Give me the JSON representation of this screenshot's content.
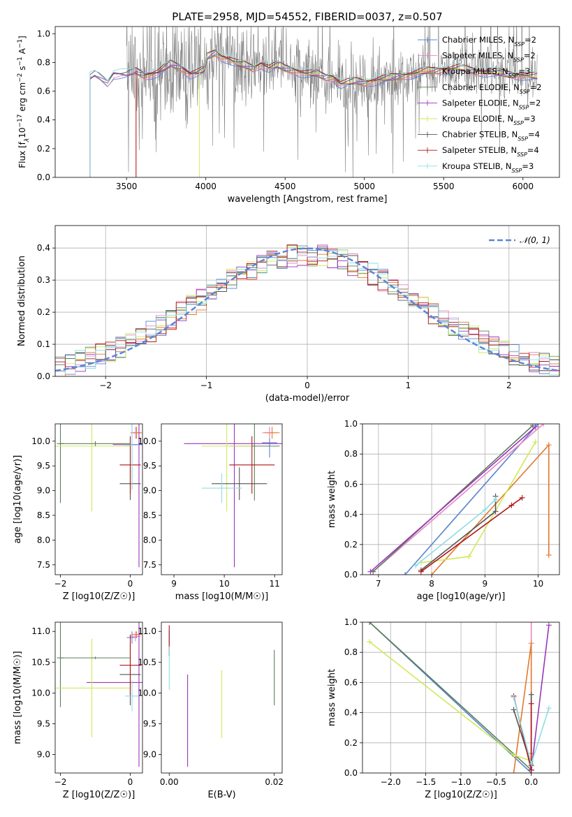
{
  "figure": {
    "title": "PLATE=2958, MJD=54552, FIBERID=0037, z=0.507"
  },
  "models": [
    {
      "name": "Chabrier MILES",
      "nssp": "2",
      "color": "#5a84d0"
    },
    {
      "name": "Salpeter MILES",
      "nssp": "2",
      "color": "#e986c4"
    },
    {
      "name": "Kroupa MILES",
      "nssp": "3",
      "color": "#e2792e"
    },
    {
      "name": "Chabrier ELODIE",
      "nssp": "2",
      "color": "#5b7f5c"
    },
    {
      "name": "Salpeter ELODIE",
      "nssp": "2",
      "color": "#9a36b8"
    },
    {
      "name": "Kroupa ELODIE",
      "nssp": "3",
      "color": "#cfe95a"
    },
    {
      "name": "Chabrier STELIB",
      "nssp": "4",
      "color": "#555555"
    },
    {
      "name": "Salpeter STELIB",
      "nssp": "4",
      "color": "#b01515"
    },
    {
      "name": "Kroupa STELIB",
      "nssp": "3",
      "color": "#8fdde3"
    }
  ],
  "chart_data": [
    {
      "id": "spectrum",
      "type": "line",
      "title": "PLATE=2958, MJD=54552, FIBERID=0037, z=0.507",
      "xlabel": "wavelength [Angstrom, rest frame]",
      "ylabel": "Flux [f_λ 10^-17 erg cm^-2 s^-1 A^-1]",
      "xlim": [
        3050,
        6230
      ],
      "ylim": [
        0,
        1.05
      ],
      "xticks": [
        3500,
        4000,
        4500,
        5000,
        5500,
        6000
      ],
      "yticks": [
        0.0,
        0.2,
        0.4,
        0.6,
        0.8,
        1.0
      ],
      "data_range": [
        3270,
        6090
      ],
      "continuum": [
        [
          3270,
          0.7
        ],
        [
          3300,
          0.72
        ],
        [
          3330,
          0.7
        ],
        [
          3380,
          0.66
        ],
        [
          3420,
          0.72
        ],
        [
          3500,
          0.72
        ],
        [
          3560,
          0.74
        ],
        [
          3620,
          0.71
        ],
        [
          3700,
          0.73
        ],
        [
          3780,
          0.79
        ],
        [
          3850,
          0.76
        ],
        [
          3900,
          0.72
        ],
        [
          3950,
          0.73
        ],
        [
          3990,
          0.75
        ],
        [
          4010,
          0.84
        ],
        [
          4060,
          0.87
        ],
        [
          4100,
          0.84
        ],
        [
          4150,
          0.82
        ],
        [
          4200,
          0.79
        ],
        [
          4250,
          0.78
        ],
        [
          4300,
          0.76
        ],
        [
          4350,
          0.79
        ],
        [
          4400,
          0.76
        ],
        [
          4450,
          0.78
        ],
        [
          4500,
          0.76
        ],
        [
          4550,
          0.75
        ],
        [
          4600,
          0.73
        ],
        [
          4650,
          0.72
        ],
        [
          4700,
          0.72
        ],
        [
          4750,
          0.7
        ],
        [
          4800,
          0.7
        ],
        [
          4850,
          0.65
        ],
        [
          4900,
          0.66
        ],
        [
          4950,
          0.67
        ],
        [
          5000,
          0.66
        ],
        [
          5100,
          0.68
        ],
        [
          5200,
          0.7
        ],
        [
          5300,
          0.72
        ],
        [
          5400,
          0.74
        ],
        [
          5500,
          0.75
        ],
        [
          5600,
          0.76
        ],
        [
          5700,
          0.74
        ],
        [
          5800,
          0.73
        ],
        [
          5900,
          0.72
        ],
        [
          6000,
          0.71
        ],
        [
          6090,
          0.7
        ]
      ]
    },
    {
      "id": "residual-histogram",
      "type": "histogram",
      "xlabel": "(data-model)/error",
      "ylabel": "Normed distribution",
      "xlim": [
        -2.5,
        2.5
      ],
      "ylim": [
        0,
        0.47
      ],
      "xticks": [
        -2,
        -1,
        0,
        1,
        2
      ],
      "yticks": [
        0.0,
        0.1,
        0.2,
        0.3,
        0.4
      ],
      "bin_width": 0.1,
      "legend": "N(0,1)",
      "legend_position": "top-right",
      "grid": true
    },
    {
      "id": "age-vs-z",
      "type": "errorbar",
      "xlabel": "Z [log10(Z/Z☉)]",
      "ylabel": "age [log10(age/yr)]",
      "xlim": [
        -2.15,
        0.35
      ],
      "ylim": [
        7.3,
        10.35
      ],
      "xticks": [
        -2,
        0
      ],
      "yticks": [
        7.5,
        8.0,
        8.5,
        9.0,
        9.5,
        10.0
      ],
      "points": [
        {
          "model": 0,
          "x": 0.05,
          "y": 9.92,
          "xerr": 0.15,
          "yerr": 0.9
        },
        {
          "model": 1,
          "x": 0.15,
          "y": 10.17,
          "xerr": 0.15,
          "yerr": 0.12
        },
        {
          "model": 2,
          "x": 0.18,
          "y": 10.17,
          "xerr": 0.15,
          "yerr": 0.12
        },
        {
          "model": 3,
          "x": -2.0,
          "y": 9.95,
          "xerr": 0.1,
          "yerr": 1.2
        },
        {
          "model": 4,
          "x": 0.25,
          "y": 9.93,
          "xerr": 0.75,
          "yerr": 2.48
        },
        {
          "model": 5,
          "x": -1.1,
          "y": 9.9,
          "xerr": 1.1,
          "yerr": 1.32
        },
        {
          "model": 6,
          "x": 0.0,
          "y": 9.14,
          "xerr": 0.3,
          "yerr": 0.33
        },
        {
          "model": 7,
          "x": 0.0,
          "y": 9.52,
          "xerr": 0.3,
          "yerr": 0.58
        },
        {
          "model": 8,
          "x": 0.05,
          "y": 9.92,
          "xerr": 0.2,
          "yerr": 0.9
        },
        {
          "model": 3,
          "x": -1.0,
          "y": 9.95,
          "xerr": 1.0,
          "yerr": 0.05
        }
      ]
    },
    {
      "id": "age-vs-mass",
      "type": "errorbar",
      "xlabel": "mass [log10(M/M☉)]",
      "ylabel": "",
      "xlim": [
        8.75,
        11.15
      ],
      "ylim": [
        7.3,
        10.35
      ],
      "xticks": [
        9,
        10,
        11
      ],
      "yticks": [
        7.5,
        8.0,
        8.5,
        9.0,
        9.5,
        10.0
      ],
      "points": [
        {
          "model": 0,
          "x": 10.9,
          "y": 9.97,
          "xerr": 0.15,
          "yerr": 0.3
        },
        {
          "model": 1,
          "x": 10.9,
          "y": 10.17,
          "xerr": 0.15,
          "yerr": 0.12
        },
        {
          "model": 2,
          "x": 10.95,
          "y": 10.17,
          "xerr": 0.15,
          "yerr": 0.12
        },
        {
          "model": 3,
          "x": 10.6,
          "y": 9.9,
          "xerr": 0.5,
          "yerr": 1.1
        },
        {
          "model": 4,
          "x": 10.2,
          "y": 9.95,
          "xerr": 1.0,
          "yerr": 2.5
        },
        {
          "model": 5,
          "x": 10.05,
          "y": 9.9,
          "xerr": 0.5,
          "yerr": 1.32
        },
        {
          "model": 6,
          "x": 10.3,
          "y": 9.14,
          "xerr": 0.55,
          "yerr": 0.33
        },
        {
          "model": 7,
          "x": 10.55,
          "y": 9.52,
          "xerr": 0.45,
          "yerr": 0.58
        },
        {
          "model": 8,
          "x": 9.95,
          "y": 9.05,
          "xerr": 0.4,
          "yerr": 0.3
        }
      ]
    },
    {
      "id": "massweight-vs-age",
      "type": "line",
      "xlabel": "age [log10(age/yr)]",
      "ylabel": "mass weight",
      "xlim": [
        6.7,
        10.4
      ],
      "ylim": [
        0,
        1.0
      ],
      "xticks": [
        7,
        8,
        9,
        10
      ],
      "yticks": [
        0.0,
        0.2,
        0.4,
        0.6,
        0.8,
        1.0
      ],
      "grid": true,
      "series": [
        {
          "model": 0,
          "x": [
            7.5,
            10.0
          ],
          "y": [
            0.0,
            1.0
          ]
        },
        {
          "model": 1,
          "x": [
            6.9,
            10.1
          ],
          "y": [
            0.02,
            1.0
          ]
        },
        {
          "model": 2,
          "x": [
            8.0,
            10.2,
            10.2
          ],
          "y": [
            0.0,
            0.86,
            0.13
          ]
        },
        {
          "model": 3,
          "x": [
            6.9,
            9.9
          ],
          "y": [
            0.02,
            0.99
          ]
        },
        {
          "model": 4,
          "x": [
            6.85,
            9.95
          ],
          "y": [
            0.02,
            0.98
          ]
        },
        {
          "model": 5,
          "x": [
            7.8,
            8.7,
            9.95
          ],
          "y": [
            0.08,
            0.12,
            0.88
          ]
        },
        {
          "model": 6,
          "x": [
            7.8,
            9.2,
            9.2
          ],
          "y": [
            0.03,
            0.42,
            0.52
          ]
        },
        {
          "model": 7,
          "x": [
            7.8,
            9.5,
            9.7
          ],
          "y": [
            0.02,
            0.46,
            0.51
          ]
        },
        {
          "model": 8,
          "x": [
            7.7,
            9.0,
            9.2
          ],
          "y": [
            0.06,
            0.43,
            0.5
          ]
        }
      ]
    },
    {
      "id": "mass-vs-z",
      "type": "errorbar",
      "xlabel": "Z [log10(Z/Z☉)]",
      "ylabel": "mass [log10(M/M☉)]",
      "xlim": [
        -2.15,
        0.35
      ],
      "ylim": [
        8.7,
        11.15
      ],
      "xticks": [
        -2,
        0
      ],
      "yticks": [
        9.0,
        9.5,
        10.0,
        10.5,
        11.0
      ],
      "points": [
        {
          "model": 0,
          "x": 0.05,
          "y": 10.9,
          "xerr": 0.15,
          "yerr": 0.1
        },
        {
          "model": 1,
          "x": 0.15,
          "y": 10.92,
          "xerr": 0.15,
          "yerr": 0.08
        },
        {
          "model": 2,
          "x": 0.18,
          "y": 10.95,
          "xerr": 0.15,
          "yerr": 0.05
        },
        {
          "model": 3,
          "x": -2.0,
          "y": 10.57,
          "xerr": 0.1,
          "yerr": 0.8
        },
        {
          "model": 4,
          "x": 0.25,
          "y": 10.17,
          "xerr": 1.5,
          "yerr": 1.37
        },
        {
          "model": 5,
          "x": -1.1,
          "y": 10.08,
          "xerr": 1.1,
          "yerr": 0.8
        },
        {
          "model": 6,
          "x": 0.0,
          "y": 10.3,
          "xerr": 0.3,
          "yerr": 0.5
        },
        {
          "model": 7,
          "x": 0.0,
          "y": 10.45,
          "xerr": 0.3,
          "yerr": 0.5
        },
        {
          "model": 8,
          "x": 0.05,
          "y": 9.95,
          "xerr": 0.2,
          "yerr": 0.25
        },
        {
          "model": 3,
          "x": -1.0,
          "y": 10.57,
          "xerr": 1.0,
          "yerr": 0.02
        }
      ]
    },
    {
      "id": "mass-vs-ebv",
      "type": "errorbar",
      "xlabel": "E(B-V)",
      "ylabel": "",
      "xlim": [
        -0.0015,
        0.0215
      ],
      "ylim": [
        8.7,
        11.15
      ],
      "xticks": [
        0.0,
        0.02
      ],
      "yticks": [
        9.0,
        9.5,
        10.0,
        10.5,
        11.0
      ],
      "points": [
        {
          "model": 0,
          "x": 0.0,
          "y": 10.9,
          "xerr": 0.0,
          "yerr": 0.12
        },
        {
          "model": 7,
          "x": 0.0,
          "y": 10.85,
          "xerr": 0.0,
          "yerr": 0.25
        },
        {
          "model": 8,
          "x": 0.0,
          "y": 10.4,
          "xerr": 0.0,
          "yerr": 0.35
        },
        {
          "model": 4,
          "x": 0.0035,
          "y": 9.55,
          "xerr": 0.0,
          "yerr": 0.75
        },
        {
          "model": 5,
          "x": 0.01,
          "y": 9.82,
          "xerr": 0.0,
          "yerr": 0.55
        },
        {
          "model": 3,
          "x": 0.02,
          "y": 10.25,
          "xerr": 0.0,
          "yerr": 0.45
        }
      ]
    },
    {
      "id": "massweight-vs-z",
      "type": "line",
      "xlabel": "Z [log10(Z/Z☉)]",
      "ylabel": "mass weight",
      "xlim": [
        -2.4,
        0.4
      ],
      "ylim": [
        0,
        1.0
      ],
      "xticks": [
        -2.0,
        -1.5,
        -1.0,
        -0.5,
        0.0
      ],
      "yticks": [
        0.0,
        0.2,
        0.4,
        0.6,
        0.8,
        1.0
      ],
      "grid": true,
      "series": [
        {
          "model": 0,
          "x": [
            -2.3,
            0.0
          ],
          "y": [
            1.0,
            0.0
          ]
        },
        {
          "model": 1,
          "x": [
            0.0,
            0.0
          ],
          "y": [
            0.0,
            1.0
          ]
        },
        {
          "model": 2,
          "x": [
            -0.25,
            0.0,
            0.0
          ],
          "y": [
            0.0,
            0.86,
            0.13
          ]
        },
        {
          "model": 3,
          "x": [
            -2.3,
            0.0
          ],
          "y": [
            1.0,
            0.02
          ]
        },
        {
          "model": 4,
          "x": [
            0.0,
            0.25
          ],
          "y": [
            0.02,
            0.98
          ]
        },
        {
          "model": 5,
          "x": [
            -2.3,
            -0.25,
            0.0
          ],
          "y": [
            0.87,
            0.12,
            0.08
          ]
        },
        {
          "model": 6,
          "x": [
            -0.25,
            0.0,
            0.0
          ],
          "y": [
            0.42,
            0.05,
            0.52
          ]
        },
        {
          "model": 7,
          "x": [
            -0.25,
            0.0,
            0.0
          ],
          "y": [
            0.51,
            0.02,
            0.46
          ]
        },
        {
          "model": 8,
          "x": [
            -0.25,
            0.0,
            0.25
          ],
          "y": [
            0.5,
            0.06,
            0.43
          ]
        }
      ]
    }
  ]
}
